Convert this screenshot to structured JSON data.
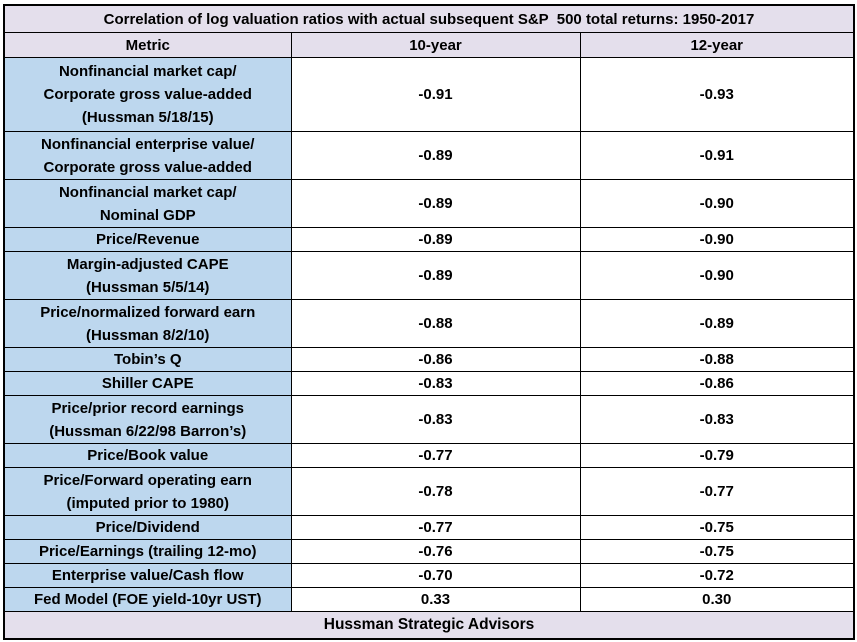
{
  "chart_data": {
    "type": "table",
    "title": "Correlation of log valuation ratios with actual subsequent S&P  500 total returns: 1950-2017",
    "columns": [
      "Metric",
      "10-year",
      "12-year"
    ],
    "rows": [
      {
        "metric_lines": [
          "Nonfinancial market cap/",
          "Corporate gross value-added",
          "(Hussman 5/18/15)"
        ],
        "ten_year": "-0.91",
        "twelve_year": "-0.93"
      },
      {
        "metric_lines": [
          "Nonfinancial enterprise value/",
          "Corporate gross value-added"
        ],
        "ten_year": "-0.89",
        "twelve_year": "-0.91"
      },
      {
        "metric_lines": [
          "Nonfinancial market cap/",
          "Nominal GDP"
        ],
        "ten_year": "-0.89",
        "twelve_year": "-0.90"
      },
      {
        "metric_lines": [
          "Price/Revenue"
        ],
        "ten_year": "-0.89",
        "twelve_year": "-0.90"
      },
      {
        "metric_lines": [
          "Margin-adjusted CAPE",
          "(Hussman 5/5/14)"
        ],
        "ten_year": "-0.89",
        "twelve_year": "-0.90"
      },
      {
        "metric_lines": [
          "Price/normalized forward earn",
          "(Hussman 8/2/10)"
        ],
        "ten_year": "-0.88",
        "twelve_year": "-0.89"
      },
      {
        "metric_lines": [
          "Tobin’s Q"
        ],
        "ten_year": "-0.86",
        "twelve_year": "-0.88"
      },
      {
        "metric_lines": [
          "Shiller CAPE"
        ],
        "ten_year": "-0.83",
        "twelve_year": "-0.86"
      },
      {
        "metric_lines": [
          "Price/prior record earnings",
          "(Hussman 6/22/98 Barron’s)"
        ],
        "ten_year": "-0.83",
        "twelve_year": "-0.83"
      },
      {
        "metric_lines": [
          "Price/Book value"
        ],
        "ten_year": "-0.77",
        "twelve_year": "-0.79"
      },
      {
        "metric_lines": [
          "Price/Forward operating earn",
          "(imputed prior to 1980)"
        ],
        "ten_year": "-0.78",
        "twelve_year": "-0.77"
      },
      {
        "metric_lines": [
          "Price/Dividend"
        ],
        "ten_year": "-0.77",
        "twelve_year": "-0.75"
      },
      {
        "metric_lines": [
          "Price/Earnings (trailing 12-mo)"
        ],
        "ten_year": "-0.76",
        "twelve_year": "-0.75"
      },
      {
        "metric_lines": [
          "Enterprise value/Cash flow"
        ],
        "ten_year": "-0.70",
        "twelve_year": "-0.72"
      },
      {
        "metric_lines": [
          "Fed Model (FOE yield-10yr UST)"
        ],
        "ten_year": "0.33",
        "twelve_year": "0.30"
      }
    ],
    "footer": "Hussman Strategic Advisors",
    "colors": {
      "title_bg": "#e4dfec",
      "header_bg": "#e4dfec",
      "metric_bg": "#bdd7ee",
      "value_bg": "#ffffff",
      "footer_bg": "#e4dfec",
      "border": "#000000",
      "text": "#000000"
    },
    "layout_hints": {
      "grid": "on",
      "legend": "none"
    }
  }
}
